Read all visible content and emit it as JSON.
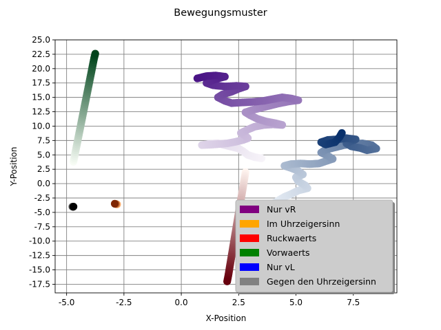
{
  "chart_data": {
    "type": "scatter",
    "title": "Bewegungsmuster",
    "xlabel": "X-Position",
    "ylabel": "Y-Position",
    "xlim": [
      -5.5,
      9.4
    ],
    "ylim": [
      -19.0,
      25.0
    ],
    "x_ticks": [
      -5.0,
      -2.5,
      0.0,
      2.5,
      5.0,
      7.5
    ],
    "x_tick_labels": [
      "-5.0",
      "-2.5",
      "0.0",
      "2.5",
      "5.0",
      "7.5"
    ],
    "y_ticks": [
      25.0,
      22.5,
      20.0,
      17.5,
      15.0,
      12.5,
      10.0,
      7.5,
      5.0,
      2.5,
      0.0,
      -2.5,
      -5.0,
      -7.5,
      -10.0,
      -12.5,
      -15.0,
      -17.5
    ],
    "y_tick_labels": [
      "25.0",
      "22.5",
      "20.0",
      "17.5",
      "15.0",
      "12.5",
      "10.0",
      "7.5",
      "5.0",
      "2.5",
      "0.0",
      "-2.5",
      "-5.0",
      "-7.5",
      "-10.0",
      "-12.5",
      "-15.0",
      "-17.5"
    ],
    "grid": true,
    "legend_position": "lower-right",
    "legend": [
      {
        "label": "Nur vR",
        "color": "#800080"
      },
      {
        "label": "Im Uhrzeigersinn",
        "color": "#ffa500"
      },
      {
        "label": "Ruckwaerts",
        "color": "#ff0000"
      },
      {
        "label": "Vorwaerts",
        "color": "#008000"
      },
      {
        "label": "Nur vL",
        "color": "#0000ff"
      },
      {
        "label": "Gegen den Uhrzeigersinn",
        "color": "#808080"
      }
    ],
    "series": [
      {
        "colormap": "Purples",
        "start_color": "#f7f4f9",
        "end_color": "#4a1486",
        "points": [
          [
            3.5,
            4.4
          ],
          [
            3.2,
            4.6
          ],
          [
            2.9,
            5.0
          ],
          [
            2.7,
            5.6
          ],
          [
            2.5,
            6.1
          ],
          [
            2.2,
            6.4
          ],
          [
            1.9,
            6.7
          ],
          [
            1.6,
            7.0
          ],
          [
            1.2,
            6.9
          ],
          [
            0.9,
            6.7
          ],
          [
            1.4,
            6.8
          ],
          [
            2.0,
            7.0
          ],
          [
            2.4,
            7.3
          ],
          [
            2.7,
            7.6
          ],
          [
            2.9,
            7.9
          ],
          [
            2.8,
            8.3
          ],
          [
            2.6,
            8.8
          ],
          [
            2.9,
            9.4
          ],
          [
            3.2,
            9.9
          ],
          [
            3.6,
            10.2
          ],
          [
            4.0,
            10.3
          ],
          [
            4.4,
            10.2
          ],
          [
            4.1,
            10.5
          ],
          [
            3.7,
            10.8
          ],
          [
            3.3,
            11.3
          ],
          [
            3.0,
            11.9
          ],
          [
            2.8,
            12.4
          ],
          [
            3.1,
            12.8
          ],
          [
            3.4,
            13.1
          ],
          [
            3.8,
            13.5
          ],
          [
            4.2,
            13.9
          ],
          [
            4.7,
            14.3
          ],
          [
            5.1,
            14.5
          ],
          [
            4.8,
            14.8
          ],
          [
            4.4,
            15.0
          ],
          [
            4.0,
            14.7
          ],
          [
            3.6,
            14.4
          ],
          [
            3.1,
            14.2
          ],
          [
            2.6,
            14.1
          ],
          [
            2.2,
            14.0
          ],
          [
            1.9,
            14.4
          ],
          [
            1.6,
            15.0
          ],
          [
            1.8,
            15.5
          ],
          [
            2.2,
            16.0
          ],
          [
            2.5,
            16.5
          ],
          [
            2.8,
            16.9
          ],
          [
            2.4,
            17.0
          ],
          [
            1.9,
            16.9
          ],
          [
            1.4,
            17.1
          ],
          [
            1.1,
            17.5
          ],
          [
            1.3,
            17.9
          ],
          [
            1.6,
            18.3
          ],
          [
            1.9,
            18.6
          ],
          [
            1.5,
            18.8
          ],
          [
            1.1,
            18.7
          ],
          [
            0.7,
            18.3
          ]
        ]
      },
      {
        "colormap": "Blues",
        "start_color": "#f7fbff",
        "end_color": "#08306b",
        "points": [
          [
            3.3,
            -5.5
          ],
          [
            3.6,
            -4.7
          ],
          [
            3.9,
            -3.8
          ],
          [
            4.2,
            -3.0
          ],
          [
            4.5,
            -2.3
          ],
          [
            4.8,
            -1.8
          ],
          [
            5.1,
            -1.2
          ],
          [
            5.5,
            -0.8
          ],
          [
            5.4,
            -0.3
          ],
          [
            5.1,
            0.4
          ],
          [
            5.0,
            1.1
          ],
          [
            5.3,
            1.6
          ],
          [
            5.1,
            2.2
          ],
          [
            4.8,
            2.7
          ],
          [
            4.5,
            3.1
          ],
          [
            4.8,
            3.4
          ],
          [
            5.2,
            3.5
          ],
          [
            5.6,
            3.4
          ],
          [
            6.0,
            3.5
          ],
          [
            6.3,
            3.9
          ],
          [
            6.6,
            4.3
          ],
          [
            6.4,
            4.8
          ],
          [
            6.1,
            5.4
          ],
          [
            6.3,
            5.9
          ],
          [
            6.7,
            6.3
          ],
          [
            7.1,
            6.7
          ],
          [
            7.5,
            6.9
          ],
          [
            7.9,
            7.0
          ],
          [
            8.3,
            6.7
          ],
          [
            8.5,
            6.1
          ],
          [
            8.1,
            5.8
          ],
          [
            7.8,
            6.2
          ],
          [
            7.4,
            6.5
          ],
          [
            7.2,
            7.0
          ],
          [
            7.4,
            7.4
          ],
          [
            7.6,
            7.7
          ],
          [
            7.2,
            7.9
          ],
          [
            6.8,
            7.7
          ],
          [
            6.4,
            7.6
          ],
          [
            6.1,
            7.2
          ],
          [
            6.3,
            6.8
          ],
          [
            6.7,
            7.2
          ],
          [
            6.9,
            8.1
          ],
          [
            7.0,
            8.8
          ]
        ]
      },
      {
        "colormap": "Greens",
        "start_color": "#f7fcf5",
        "end_color": "#00441b",
        "points": [
          [
            -4.7,
            3.8
          ],
          [
            -4.65,
            4.8
          ],
          [
            -4.6,
            5.8
          ],
          [
            -4.55,
            6.8
          ],
          [
            -4.5,
            7.8
          ],
          [
            -4.45,
            8.8
          ],
          [
            -4.4,
            9.8
          ],
          [
            -4.35,
            10.8
          ],
          [
            -4.3,
            11.8
          ],
          [
            -4.25,
            12.8
          ],
          [
            -4.2,
            13.8
          ],
          [
            -4.15,
            14.8
          ],
          [
            -4.1,
            15.8
          ],
          [
            -4.05,
            16.8
          ],
          [
            -4.0,
            17.8
          ],
          [
            -3.95,
            18.8
          ],
          [
            -3.9,
            19.8
          ],
          [
            -3.85,
            20.8
          ],
          [
            -3.8,
            21.8
          ],
          [
            -3.75,
            22.6
          ]
        ]
      },
      {
        "colormap": "Reds",
        "start_color": "#fff5f0",
        "end_color": "#67000d",
        "points": [
          [
            2.8,
            2.0
          ],
          [
            2.75,
            0.8
          ],
          [
            2.7,
            -0.4
          ],
          [
            2.65,
            -1.6
          ],
          [
            2.6,
            -2.8
          ],
          [
            2.55,
            -4.0
          ],
          [
            2.5,
            -5.2
          ],
          [
            2.45,
            -6.4
          ],
          [
            2.4,
            -7.6
          ],
          [
            2.35,
            -8.8
          ],
          [
            2.3,
            -10.0
          ],
          [
            2.25,
            -11.2
          ],
          [
            2.2,
            -12.4
          ],
          [
            2.15,
            -13.6
          ],
          [
            2.1,
            -14.8
          ],
          [
            2.05,
            -16.0
          ],
          [
            2.0,
            -17.0
          ]
        ]
      },
      {
        "colormap": "Oranges",
        "start_color": "#fdae6b",
        "end_color": "#7f2704",
        "points": [
          [
            -2.8,
            -3.6
          ],
          [
            -2.85,
            -3.55
          ],
          [
            -2.9,
            -3.5
          ]
        ]
      },
      {
        "colormap": "Greys",
        "start_color": "#737373",
        "end_color": "#000000",
        "points": [
          [
            -4.75,
            -4.0
          ],
          [
            -4.72,
            -4.05
          ],
          [
            -4.7,
            -4.0
          ]
        ]
      }
    ]
  }
}
